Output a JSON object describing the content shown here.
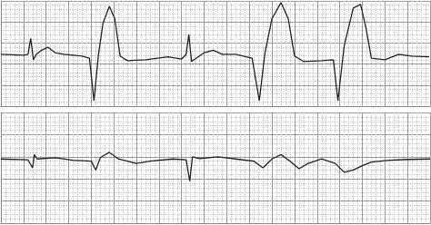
{
  "chart_data": [
    {
      "type": "line",
      "color": "#222222",
      "grid": true,
      "tick_labels": false,
      "xlim": [
        0,
        95
      ],
      "ylim": [
        0,
        25
      ],
      "xticks": [
        0,
        5,
        10,
        15,
        20,
        25,
        30,
        35,
        40,
        45,
        50,
        55,
        60,
        65,
        70,
        75,
        80,
        85,
        90,
        95
      ],
      "yticks": [
        0,
        5,
        10,
        15,
        20,
        25
      ],
      "x": [
        0,
        5,
        6,
        6.6,
        7.2,
        7.8,
        9,
        10.4,
        12,
        14,
        18,
        19.6,
        20.6,
        21.6,
        22.6,
        24,
        25.2,
        26.4,
        28,
        32,
        37,
        40,
        41,
        41.6,
        42.2,
        43,
        45,
        47,
        49,
        52,
        55.6,
        57.2,
        58.4,
        60,
        62,
        63.6,
        65,
        67,
        71,
        73.6,
        74.6,
        76,
        78,
        79.6,
        80.8,
        82,
        85,
        88,
        91,
        94.8
      ],
      "values": [
        12.3,
        12.1,
        12.3,
        16.1,
        11,
        12.3,
        13.3,
        14,
        12.7,
        12.3,
        11.9,
        11.4,
        1.3,
        12.3,
        19.7,
        23.7,
        20.8,
        11.9,
        10.8,
        11,
        11.7,
        11.2,
        12.3,
        17,
        10.6,
        11.2,
        12.7,
        13.3,
        12.3,
        12.3,
        11.4,
        1.3,
        12.3,
        20.8,
        24.6,
        20.8,
        11.9,
        10.6,
        10.8,
        11,
        1.3,
        14.4,
        23.3,
        24.2,
        18.6,
        11.4,
        11,
        12.3,
        11.9,
        11.7
      ]
    },
    {
      "type": "line",
      "color": "#222222",
      "grid": true,
      "tick_labels": false,
      "xlim": [
        0,
        95
      ],
      "ylim": [
        0,
        25
      ],
      "xticks": [
        0,
        5,
        10,
        15,
        20,
        25,
        30,
        35,
        40,
        45,
        50,
        55,
        60,
        65,
        70,
        75,
        80,
        85,
        90,
        95
      ],
      "yticks": [
        0,
        5,
        10,
        15,
        20,
        25
      ],
      "x": [
        0,
        6,
        7,
        7.4,
        8,
        12,
        16,
        20,
        21,
        22,
        24,
        26,
        30,
        33,
        38,
        41,
        41.8,
        42.4,
        44,
        48,
        52,
        56,
        58,
        60,
        62,
        64,
        66,
        68,
        71,
        74,
        76,
        78,
        80,
        82,
        86,
        90,
        95
      ],
      "values": [
        14.5,
        14.3,
        12.5,
        15.5,
        14.5,
        14.8,
        14.2,
        14,
        12,
        14.8,
        16,
        14.5,
        13.5,
        14,
        14.5,
        14.3,
        9.5,
        15,
        14.6,
        15,
        14.5,
        14,
        12.5,
        14.5,
        15.5,
        14,
        12.3,
        13.5,
        14.5,
        13.5,
        11.5,
        12,
        13,
        13.8,
        14.2,
        14.4,
        14.5
      ]
    }
  ]
}
